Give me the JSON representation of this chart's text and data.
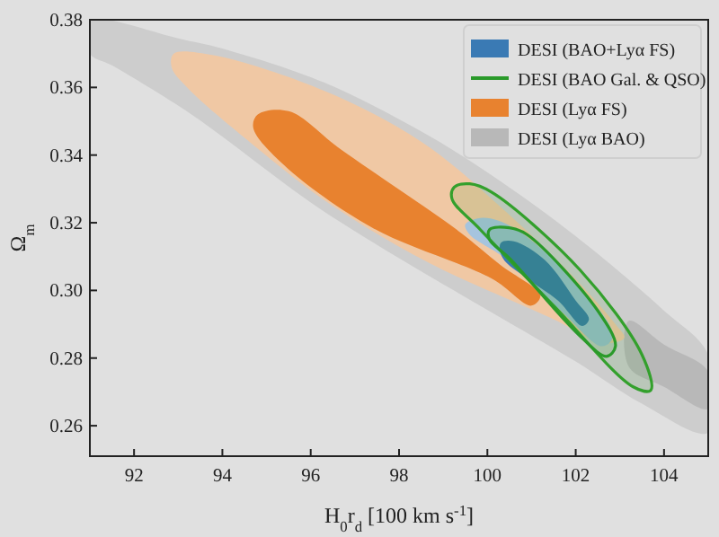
{
  "chart_data": {
    "type": "area",
    "xlabel": "H$_{0}$r$_{d}$ [100 km s$^{-1}$]",
    "ylabel": "Ω$_{m}$",
    "xlim": [
      91,
      105
    ],
    "ylim": [
      0.251,
      0.38
    ],
    "xticks": [
      92,
      94,
      96,
      98,
      100,
      102,
      104
    ],
    "yticks": [
      0.26,
      0.28,
      {
        "value": 0.3,
        "label": "0.30"
      },
      0.32,
      0.34,
      0.36,
      0.38
    ],
    "legend": "top right",
    "grid": false,
    "series": [
      {
        "color": "#cdcdcd",
        "x": [
          91,
          91.4,
          93,
          94,
          96.3,
          98.5,
          100.1,
          102,
          104,
          105,
          105,
          103.5,
          102,
          100.1,
          98,
          96,
          93.3,
          91.5,
          91
        ],
        "values": [
          0.38,
          0.38,
          0.3745,
          0.3715,
          0.3615,
          0.347,
          0.334,
          0.316,
          0.294,
          0.281,
          0.258,
          0.2665,
          0.279,
          0.2935,
          0.3095,
          0.326,
          0.352,
          0.3665,
          0.37
        ]
      },
      {
        "name": "DESI (Lyα BAO)",
        "color": "#b8b8b8",
        "x": [
          103.2,
          104,
          105,
          105,
          104,
          103.2
        ],
        "values": [
          0.291,
          0.284,
          0.276,
          0.265,
          0.2715,
          0.2775
        ]
      },
      {
        "color": "#f0c8a4",
        "x": [
          92.9,
          93.8,
          96.3,
          98.5,
          100.1,
          101.8,
          102.9,
          103.1,
          102.6,
          101.5,
          98.7,
          96.5,
          94.7,
          93.2,
          92.85
        ],
        "values": [
          0.37,
          0.3695,
          0.359,
          0.344,
          0.327,
          0.306,
          0.29,
          0.286,
          0.2845,
          0.2915,
          0.308,
          0.325,
          0.343,
          0.36,
          0.366
        ]
      },
      {
        "name": "DESI (Lyα FS)",
        "color": "#e8822f",
        "x": [
          94.8,
          95.5,
          96.7,
          99.3,
          100.3,
          101.2,
          101.0,
          100.1,
          97.4,
          95.4,
          94.7
        ],
        "values": [
          0.352,
          0.353,
          0.3415,
          0.318,
          0.3075,
          0.2985,
          0.2955,
          0.3035,
          0.3185,
          0.337,
          0.348
        ]
      },
      {
        "line_style": "solid",
        "color": "#33a02c",
        "x": [
          99.25,
          99.6,
          100.1,
          102.1,
          103.5,
          103.7,
          103.3,
          101.5,
          99.8,
          99.2
        ],
        "values": [
          0.3305,
          0.3315,
          0.329,
          0.306,
          0.281,
          0.2705,
          0.2715,
          0.2955,
          0.3185,
          0.327
        ]
      },
      {
        "name": "DESI (BAO Gal. & QSO)",
        "line_style": "solid",
        "color": "#2a9a2a",
        "x": [
          100.05,
          100.5,
          100.9,
          102.5,
          102.9,
          102.7,
          102.1,
          100.5,
          100.05
        ],
        "values": [
          0.318,
          0.3185,
          0.3165,
          0.294,
          0.2835,
          0.2805,
          0.2865,
          0.3095,
          0.315
        ]
      },
      {
        "color": "#a6c4de",
        "x": [
          99.5,
          99.9,
          100.6,
          102.1,
          102.85,
          102.6,
          101.7,
          100.4,
          99.6
        ],
        "values": [
          0.3195,
          0.3215,
          0.3185,
          0.301,
          0.2865,
          0.2835,
          0.2935,
          0.3095,
          0.3165
        ]
      },
      {
        "name": "DESI (BAO+Lyα FS)",
        "color": "#3a7ab4",
        "x": [
          100.3,
          100.6,
          101.3,
          102.0,
          102.3,
          102.15,
          101.6,
          100.9,
          100.35
        ],
        "values": [
          0.314,
          0.3145,
          0.309,
          0.297,
          0.2915,
          0.2895,
          0.297,
          0.3035,
          0.3095
        ]
      }
    ]
  }
}
